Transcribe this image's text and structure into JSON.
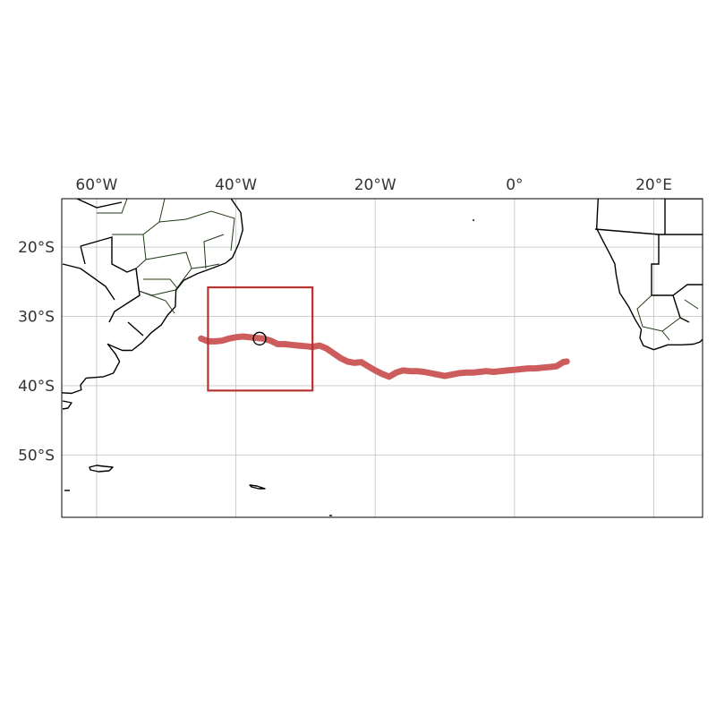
{
  "map": {
    "projection": "PlateCarree",
    "extent": {
      "lon_min": -65,
      "lon_max": 27,
      "lat_min": -59,
      "lat_max": -13
    },
    "gridlines": true,
    "lon_ticks": [
      {
        "value": -60,
        "label": "60°W"
      },
      {
        "value": -40,
        "label": "40°W"
      },
      {
        "value": -20,
        "label": "20°W"
      },
      {
        "value": 0,
        "label": "0°"
      },
      {
        "value": 20,
        "label": "20°E"
      }
    ],
    "lat_ticks": [
      {
        "value": -20,
        "label": "20°S"
      },
      {
        "value": -30,
        "label": "30°S"
      },
      {
        "value": -40,
        "label": "40°S"
      },
      {
        "value": -50,
        "label": "50°S"
      }
    ],
    "colors": {
      "track": "#cd5c5c",
      "region_box": "#b83232",
      "coastline": "#000000",
      "state_borders": "#1f3a12",
      "gridlines": "#b0b0b0"
    },
    "region_box": {
      "lon_min": -44,
      "lon_max": -29,
      "lat_min": -40.7,
      "lat_max": -25.8
    },
    "marker": {
      "lon": -36.6,
      "lat": -33.2,
      "shape": "circle"
    },
    "track": [
      [
        -45,
        -33.2
      ],
      [
        -44,
        -33.6
      ],
      [
        -43,
        -33.6
      ],
      [
        -42,
        -33.5
      ],
      [
        -41,
        -33.2
      ],
      [
        -40,
        -33.0
      ],
      [
        -39,
        -32.9
      ],
      [
        -38,
        -33.0
      ],
      [
        -37,
        -33.1
      ],
      [
        -36,
        -33.2
      ],
      [
        -35,
        -33.5
      ],
      [
        -34,
        -34.0
      ],
      [
        -33,
        -34.0
      ],
      [
        -32,
        -34.1
      ],
      [
        -31,
        -34.2
      ],
      [
        -30,
        -34.3
      ],
      [
        -29,
        -34.4
      ],
      [
        -28,
        -34.2
      ],
      [
        -27,
        -34.6
      ],
      [
        -26,
        -35.3
      ],
      [
        -25,
        -36.0
      ],
      [
        -24,
        -36.5
      ],
      [
        -23,
        -36.7
      ],
      [
        -22,
        -36.6
      ],
      [
        -21,
        -37.2
      ],
      [
        -20,
        -37.8
      ],
      [
        -19,
        -38.3
      ],
      [
        -18,
        -38.7
      ],
      [
        -17,
        -38.1
      ],
      [
        -16,
        -37.8
      ],
      [
        -15,
        -37.9
      ],
      [
        -14,
        -37.9
      ],
      [
        -13,
        -38.0
      ],
      [
        -12,
        -38.2
      ],
      [
        -11,
        -38.4
      ],
      [
        -10,
        -38.6
      ],
      [
        -9,
        -38.4
      ],
      [
        -8,
        -38.2
      ],
      [
        -7,
        -38.1
      ],
      [
        -6,
        -38.1
      ],
      [
        -5,
        -38.0
      ],
      [
        -4,
        -37.9
      ],
      [
        -3,
        -38.0
      ],
      [
        -2,
        -37.9
      ],
      [
        -1,
        -37.8
      ],
      [
        0,
        -37.7
      ],
      [
        1,
        -37.6
      ],
      [
        2,
        -37.5
      ],
      [
        3,
        -37.5
      ],
      [
        4,
        -37.4
      ],
      [
        5,
        -37.3
      ],
      [
        6,
        -37.2
      ],
      [
        7,
        -36.6
      ],
      [
        7.5,
        -36.5
      ]
    ],
    "land": {
      "south_america": [
        [
          -40.7,
          -13
        ],
        [
          -39.3,
          -15
        ],
        [
          -39.0,
          -17.5
        ],
        [
          -39.6,
          -19.5
        ],
        [
          -40.5,
          -21.5
        ],
        [
          -41.5,
          -22.3
        ],
        [
          -43.3,
          -23.0
        ],
        [
          -45.5,
          -23.8
        ],
        [
          -47.5,
          -24.8
        ],
        [
          -48.6,
          -26.2
        ],
        [
          -48.7,
          -28.6
        ],
        [
          -49.8,
          -29.8
        ],
        [
          -50.7,
          -31.2
        ],
        [
          -52.2,
          -32.4
        ],
        [
          -53.4,
          -33.7
        ],
        [
          -54.9,
          -34.9
        ],
        [
          -56.3,
          -34.9
        ],
        [
          -57.5,
          -34.4
        ],
        [
          -58.4,
          -34.0
        ],
        [
          -57.3,
          -35.4
        ],
        [
          -56.7,
          -36.5
        ],
        [
          -57.6,
          -38.2
        ],
        [
          -59.0,
          -38.7
        ],
        [
          -61.5,
          -38.9
        ],
        [
          -62.3,
          -39.9
        ],
        [
          -62.2,
          -40.6
        ],
        [
          -63.6,
          -41.1
        ],
        [
          -65.2,
          -41.0
        ],
        [
          -65.5,
          -42.5
        ],
        [
          -66,
          -43
        ]
      ],
      "africa": [
        [
          12,
          -13
        ],
        [
          11.9,
          -15
        ],
        [
          11.8,
          -17.3
        ],
        [
          12.7,
          -19.1
        ],
        [
          13.6,
          -20.8
        ],
        [
          14.4,
          -22.4
        ],
        [
          14.6,
          -24
        ],
        [
          15.1,
          -26.6
        ],
        [
          16.4,
          -28.6
        ],
        [
          17.3,
          -30.4
        ],
        [
          18.2,
          -31.9
        ],
        [
          18.0,
          -33.1
        ],
        [
          18.5,
          -34.2
        ],
        [
          20.0,
          -34.8
        ],
        [
          22.0,
          -34.1
        ],
        [
          24.0,
          -34.1
        ],
        [
          25.7,
          -34.0
        ],
        [
          26.6,
          -33.7
        ],
        [
          27,
          -33.3
        ]
      ]
    }
  }
}
